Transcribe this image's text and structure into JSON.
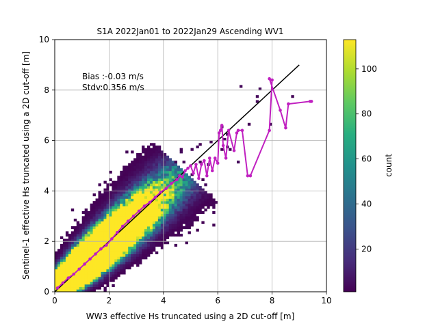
{
  "chart_data": {
    "type": "heatmap",
    "title": "S1A 2022Jan01 to 2022Jan29 Ascending WV1",
    "xlabel": "WW3 effective Hs truncated using a 2D cut-off [m]",
    "ylabel": "Sentinel-1 effective Hs truncated using a 2D cut-off [m]",
    "xlim": [
      0,
      10
    ],
    "ylim": [
      0,
      10
    ],
    "xticks": [
      0,
      2,
      4,
      6,
      8,
      10
    ],
    "yticks": [
      0,
      2,
      4,
      6,
      8,
      10
    ],
    "grid": true,
    "annotations": [
      "Bias :-0.03 m/s",
      "Stdv:0.356 m/s"
    ],
    "colorbar": {
      "label": "count",
      "colormap": "viridis",
      "range": [
        1,
        113
      ],
      "ticks": [
        20,
        40,
        60,
        80,
        100
      ]
    },
    "identity_line": {
      "x": [
        0,
        9
      ],
      "y": [
        0,
        9
      ],
      "color": "#000000"
    },
    "mean_curve": {
      "color": "#c020c0",
      "x": [
        0.1,
        0.3,
        0.5,
        0.7,
        0.9,
        1.1,
        1.3,
        1.5,
        1.7,
        1.9,
        2.1,
        2.3,
        2.5,
        2.7,
        2.9,
        3.1,
        3.3,
        3.5,
        3.7,
        3.9,
        4.1,
        4.3,
        4.5,
        4.6,
        4.7,
        4.8,
        4.9,
        5.0,
        5.1,
        5.2,
        5.3,
        5.4,
        5.5,
        5.6,
        5.7,
        5.8,
        5.9,
        6.0,
        6.05,
        6.1,
        6.15,
        6.2,
        6.3,
        6.4,
        6.6,
        6.7,
        6.75,
        6.9,
        7.1,
        7.2,
        7.9,
        8.0,
        7.9,
        8.3,
        8.5,
        8.6,
        8.6,
        9.4,
        9.45
      ],
      "y": [
        0.15,
        0.35,
        0.55,
        0.7,
        0.9,
        1.1,
        1.3,
        1.5,
        1.7,
        1.85,
        2.1,
        2.35,
        2.6,
        2.8,
        3.0,
        3.2,
        3.4,
        3.55,
        3.75,
        3.95,
        4.1,
        4.3,
        4.45,
        4.6,
        4.55,
        4.8,
        4.9,
        5.0,
        4.7,
        5.05,
        4.5,
        5.05,
        5.2,
        4.6,
        5.3,
        4.8,
        5.3,
        5.1,
        6.3,
        6.4,
        6.6,
        5.8,
        5.3,
        6.4,
        5.6,
        6.3,
        6.4,
        6.4,
        4.6,
        4.6,
        6.4,
        8.4,
        8.45,
        7.2,
        6.5,
        7.45,
        7.45,
        7.55,
        7.55
      ]
    }
  }
}
